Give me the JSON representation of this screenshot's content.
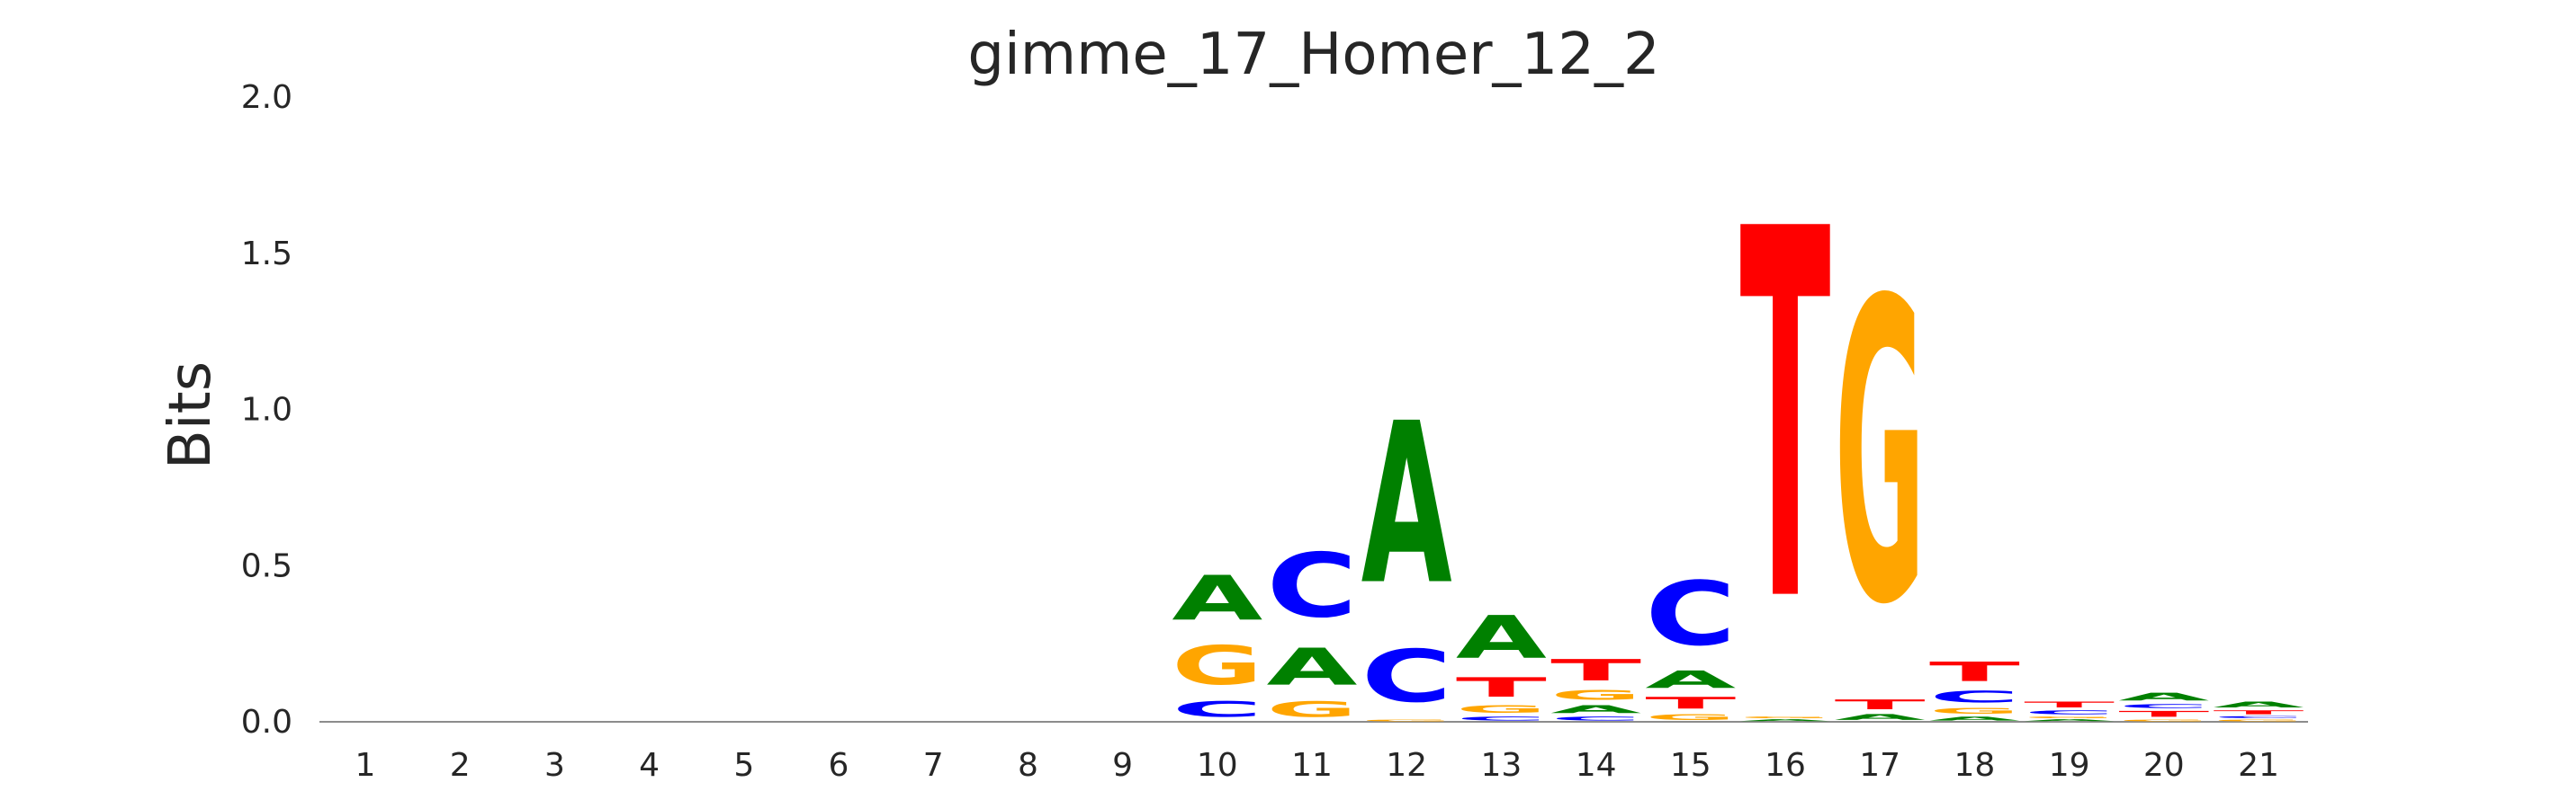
{
  "chart_data": {
    "type": "sequence-logo",
    "title": "gimme_17_Homer_12_2",
    "ylabel": "Bits",
    "xlabel": "",
    "ylim": [
      0,
      2.0
    ],
    "yticks": [
      "0.0",
      "0.5",
      "1.0",
      "1.5",
      "2.0"
    ],
    "positions": [
      "1",
      "2",
      "3",
      "4",
      "5",
      "6",
      "7",
      "8",
      "9",
      "10",
      "11",
      "12",
      "13",
      "14",
      "15",
      "16",
      "17",
      "18",
      "19",
      "20",
      "21"
    ],
    "colors": {
      "A": "#008000",
      "C": "#0000ff",
      "G": "#ffa500",
      "T": "#ff0000"
    },
    "stacks": [
      [],
      [],
      [],
      [],
      [],
      [],
      [],
      [],
      [],
      [
        {
          "base": "C",
          "bits": 0.08
        },
        {
          "base": "G",
          "bits": 0.2
        },
        {
          "base": "A",
          "bits": 0.23
        }
      ],
      [
        {
          "base": "G",
          "bits": 0.08
        },
        {
          "base": "A",
          "bits": 0.19
        },
        {
          "base": "C",
          "bits": 0.33
        }
      ],
      [
        {
          "base": "G",
          "bits": 0.01
        },
        {
          "base": "C",
          "bits": 0.27
        },
        {
          "base": "A",
          "bits": 0.83
        }
      ],
      [
        {
          "base": "C",
          "bits": 0.02
        },
        {
          "base": "G",
          "bits": 0.04
        },
        {
          "base": "T",
          "bits": 0.1
        },
        {
          "base": "A",
          "bits": 0.22
        }
      ],
      [
        {
          "base": "C",
          "bits": 0.02
        },
        {
          "base": "A",
          "bits": 0.04
        },
        {
          "base": "G",
          "bits": 0.05
        },
        {
          "base": "T",
          "bits": 0.11
        }
      ],
      [
        {
          "base": "G",
          "bits": 0.03
        },
        {
          "base": "T",
          "bits": 0.06
        },
        {
          "base": "A",
          "bits": 0.09
        },
        {
          "base": "C",
          "bits": 0.33
        }
      ],
      [
        {
          "base": "A",
          "bits": 0.01
        },
        {
          "base": "G",
          "bits": 0.01
        },
        {
          "base": "T",
          "bits": 1.9
        }
      ],
      [
        {
          "base": "A",
          "bits": 0.03
        },
        {
          "base": "T",
          "bits": 0.05
        },
        {
          "base": "G",
          "bits": 1.55
        }
      ],
      [
        {
          "base": "A",
          "bits": 0.02
        },
        {
          "base": "G",
          "bits": 0.03
        },
        {
          "base": "C",
          "bits": 0.06
        },
        {
          "base": "T",
          "bits": 0.1
        }
      ],
      [
        {
          "base": "A",
          "bits": 0.01
        },
        {
          "base": "G",
          "bits": 0.01
        },
        {
          "base": "C",
          "bits": 0.02
        },
        {
          "base": "T",
          "bits": 0.03
        }
      ],
      [
        {
          "base": "G",
          "bits": 0.01
        },
        {
          "base": "T",
          "bits": 0.03
        },
        {
          "base": "C",
          "bits": 0.02
        },
        {
          "base": "A",
          "bits": 0.04
        }
      ],
      [
        {
          "base": "G",
          "bits": 0.01
        },
        {
          "base": "C",
          "bits": 0.01
        },
        {
          "base": "T",
          "bits": 0.02
        },
        {
          "base": "A",
          "bits": 0.03
        }
      ]
    ]
  }
}
